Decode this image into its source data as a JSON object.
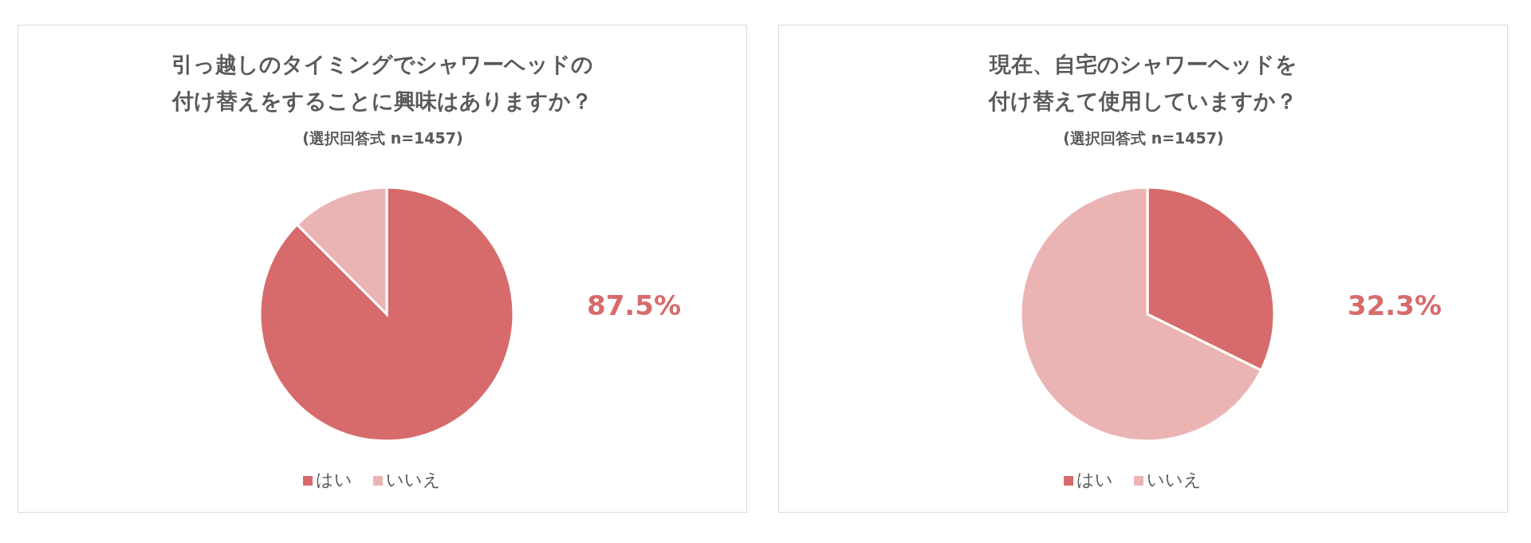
{
  "chart_data": [
    {
      "type": "pie",
      "title": "引っ越しのタイミングでシャワーヘッドの付け替えをすることに興味はありますか？",
      "subtitle": "(選択回答式 n=1457)",
      "categories": [
        "はい",
        "いいえ"
      ],
      "values": [
        87.5,
        12.5
      ],
      "colors": [
        "#d76b6b",
        "#ebb4b4"
      ],
      "value_labels": [
        "87.5%",
        null
      ],
      "legend": "bottom"
    },
    {
      "type": "pie",
      "title": "現在、自宅のシャワーヘッドを付け替えて使用していますか？",
      "subtitle": "(選択回答式 n=1457)",
      "categories": [
        "はい",
        "いいえ"
      ],
      "values": [
        32.3,
        67.7
      ],
      "colors": [
        "#d76b6b",
        "#ebb4b4"
      ],
      "value_labels": [
        "32.3%",
        null
      ],
      "legend": "bottom"
    }
  ]
}
